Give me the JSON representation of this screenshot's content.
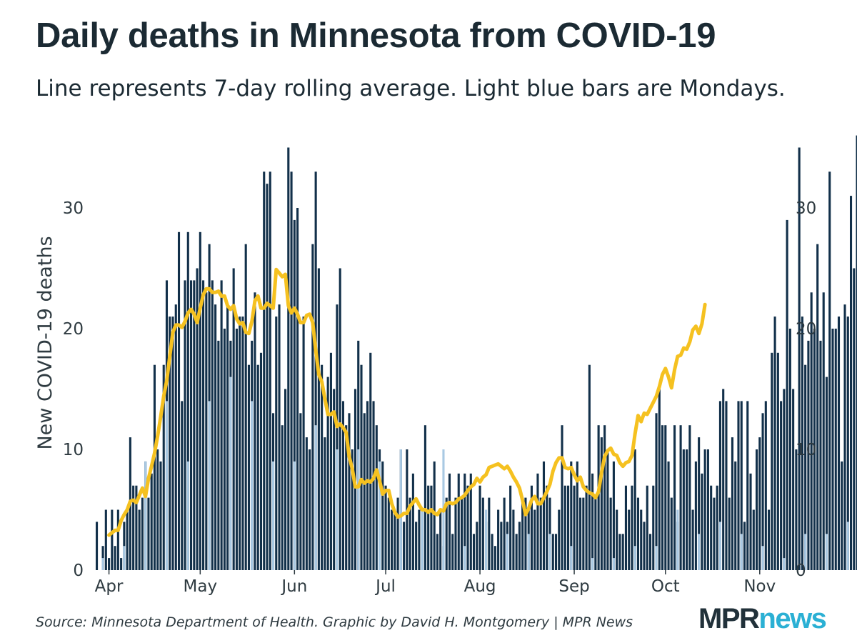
{
  "header": {
    "title": "Daily deaths in Minnesota from COVID-19",
    "subtitle": "Line represents 7-day rolling average. Light blue bars are Mondays."
  },
  "footer": {
    "source": "Source: Minnesota Department of Health. Graphic by David H. Montgomery | MPR News",
    "logo_part1": "MPR",
    "logo_part2": "news"
  },
  "colors": {
    "bar": "#12304a",
    "monday_bar": "#a9c9e3",
    "line": "#f5c120",
    "brand_dark": "#21313a",
    "brand_accent": "#2bb0d4"
  },
  "chart_data": {
    "type": "bar",
    "title": "Daily deaths in Minnesota from COVID-19",
    "subtitle": "Line represents 7-day rolling average. Light blue bars are Mondays.",
    "xlabel": "",
    "ylabel": "New COVID-19 deaths",
    "ylim": [
      0,
      36
    ],
    "yticks": [
      0,
      10,
      20,
      30
    ],
    "y_axis_sides": "both",
    "x": {
      "start": "2020-03-28",
      "end": "2020-11-07"
    },
    "month_ticks": [
      {
        "label": "Apr",
        "date": "2020-04-01"
      },
      {
        "label": "May",
        "date": "2020-05-01"
      },
      {
        "label": "Jun",
        "date": "2020-06-01"
      },
      {
        "label": "Jul",
        "date": "2020-07-01"
      },
      {
        "label": "Aug",
        "date": "2020-08-01"
      },
      {
        "label": "Sep",
        "date": "2020-09-01"
      },
      {
        "label": "Oct",
        "date": "2020-10-01"
      },
      {
        "label": "Nov",
        "date": "2020-11-01"
      }
    ],
    "grid": false,
    "legend": "none",
    "series": [
      {
        "kind": "daily bars",
        "values": [
          4,
          0,
          2,
          5,
          1,
          5,
          2,
          5,
          1,
          4,
          5,
          11,
          7,
          7,
          5,
          6,
          9,
          6,
          8,
          17,
          10,
          9,
          17,
          24,
          21,
          21,
          22,
          28,
          14,
          24,
          28,
          24,
          24,
          25,
          28,
          24,
          23,
          27,
          24,
          22,
          19,
          24,
          20,
          22,
          19,
          25,
          20,
          21,
          21,
          27,
          17,
          19,
          23,
          17,
          18,
          33,
          32,
          33,
          13,
          21,
          22,
          12,
          15,
          35,
          33,
          29,
          30,
          13,
          21,
          11,
          10,
          27,
          33,
          25,
          17,
          11,
          16,
          18,
          15,
          22,
          25,
          14,
          12,
          13,
          10,
          15,
          19,
          17,
          13,
          14,
          18,
          14,
          12,
          10,
          9,
          7,
          6,
          5,
          5,
          6,
          10,
          4,
          10,
          6,
          8,
          4,
          5,
          5,
          12,
          7,
          7,
          9,
          3,
          5,
          2,
          6,
          8,
          3,
          6,
          8,
          6,
          8,
          7,
          8,
          3,
          4,
          7,
          6,
          4,
          6,
          3,
          2,
          5,
          4,
          6,
          4,
          7,
          5,
          3,
          4,
          6,
          6,
          5,
          7,
          5,
          8,
          6,
          9,
          7,
          6,
          3,
          3,
          5,
          12,
          7,
          7,
          9,
          7,
          9,
          6,
          6,
          7,
          17,
          8,
          6,
          12,
          11,
          12,
          10,
          6,
          9,
          5,
          3,
          3,
          7,
          5,
          7,
          10,
          6,
          5,
          4,
          7,
          3,
          7,
          13,
          15,
          12,
          12,
          9,
          6,
          12,
          4,
          12,
          10,
          10,
          12,
          5,
          9,
          11,
          8,
          10,
          10,
          7,
          6,
          7,
          14,
          15,
          14,
          6,
          11,
          9,
          14,
          14,
          4,
          14,
          8,
          5,
          10,
          11,
          13,
          14,
          5,
          18,
          21,
          18,
          14,
          15,
          29,
          20,
          15,
          10,
          35,
          21,
          17,
          19,
          23,
          20,
          27,
          19,
          23,
          16,
          33,
          20,
          20,
          21,
          9,
          22,
          21,
          31,
          25,
          36
        ],
        "monday_values": [
          1,
          2,
          9,
          14,
          9,
          14,
          16,
          14,
          9,
          9,
          12,
          10,
          10,
          9,
          10,
          5,
          10,
          2,
          5,
          3,
          3,
          3,
          2,
          1,
          1,
          2,
          2,
          5,
          3,
          4,
          3,
          2,
          1,
          3,
          3,
          4,
          3,
          2,
          3,
          2,
          3,
          3,
          2,
          5,
          4,
          7,
          3,
          3,
          2,
          3,
          4,
          9
        ]
      },
      {
        "kind": "7-day rolling average line",
        "start": "2020-04-01",
        "values": [
          2.9,
          3.1,
          3.3,
          3.3,
          4.1,
          4.6,
          5.0,
          5.7,
          5.8,
          5.6,
          6.2,
          6.8,
          6.1,
          7.6,
          8.6,
          9.7,
          11.1,
          12.7,
          14.4,
          15.7,
          17.7,
          19.7,
          20.3,
          20.3,
          20.1,
          20.6,
          21.3,
          21.6,
          21.2,
          20.5,
          21.7,
          22.8,
          23.3,
          23.3,
          23.0,
          23.0,
          23.1,
          22.7,
          22.7,
          21.9,
          21.6,
          21.9,
          20.8,
          20.4,
          20.5,
          19.7,
          19.6,
          20.6,
          22.3,
          22.7,
          21.7,
          21.7,
          22.1,
          21.9,
          21.7,
          24.9,
          24.6,
          24.3,
          24.5,
          21.9,
          21.3,
          21.7,
          21.2,
          20.5,
          20.5,
          21.1,
          21.2,
          20.5,
          18.2,
          16.2,
          15.6,
          14.2,
          12.9,
          12.9,
          13.1,
          11.9,
          12.1,
          11.8,
          11.4,
          9.4,
          8.4,
          6.9,
          6.9,
          7.5,
          7.2,
          7.4,
          7.3,
          7.6,
          8.3,
          7.4,
          6.3,
          6.6,
          6.6,
          5.5,
          4.8,
          4.4,
          4.5,
          4.7,
          4.7,
          5.3,
          5.6,
          5.9,
          5.4,
          5.0,
          5.0,
          4.8,
          5.0,
          4.7,
          4.6,
          5.0,
          4.9,
          5.5,
          5.6,
          5.5,
          5.6,
          5.9,
          6.0,
          6.2,
          6.6,
          6.9,
          7.1,
          7.6,
          7.3,
          7.7,
          7.9,
          8.5,
          8.6,
          8.7,
          8.8,
          8.6,
          8.4,
          8.6,
          8.2,
          7.7,
          7.3,
          6.8,
          5.8,
          4.6,
          5.1,
          5.8,
          6.1,
          5.5,
          5.5,
          6.0,
          6.5,
          7.1,
          8.2,
          8.9,
          9.3,
          9.3,
          8.5,
          8.4,
          8.5,
          7.9,
          7.4,
          7.7,
          6.9,
          6.6,
          6.4,
          6.3,
          6.0,
          6.5,
          8.1,
          9.4,
          9.9,
          10.1,
          9.6,
          9.5,
          8.9,
          8.6,
          8.9,
          9.0,
          9.5,
          11.3,
          12.8,
          12.3,
          13.0,
          12.9,
          13.4,
          13.9,
          14.4,
          15.2,
          16.2,
          16.7,
          16.0,
          15.1,
          16.6,
          17.7,
          17.8,
          18.4,
          18.3,
          18.9,
          19.9,
          20.2,
          19.6,
          20.4,
          22.0
        ]
      }
    ]
  }
}
